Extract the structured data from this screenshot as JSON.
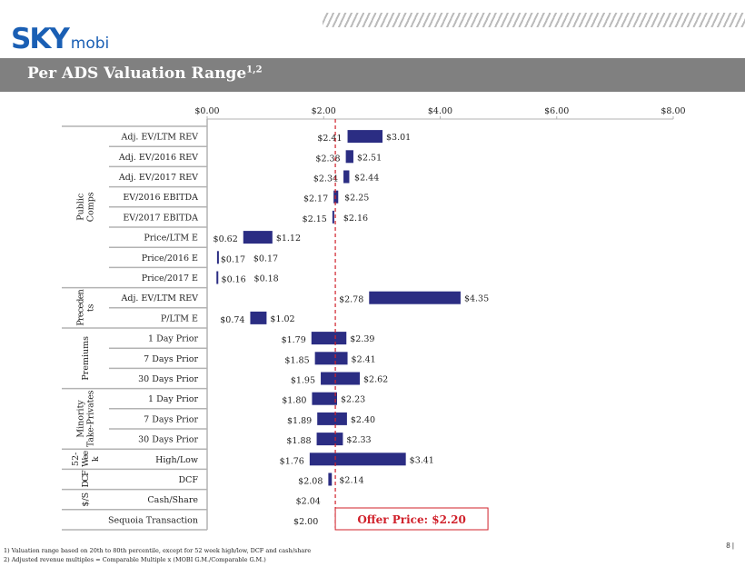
{
  "header": {
    "logo_main": "SKY",
    "logo_sub": "mobi",
    "title": "Per ADS Valuation Range",
    "title_sup": "1,2"
  },
  "colors": {
    "bar": "#2b2d83",
    "offer": "#d0202a",
    "grid": "#b3b3b3"
  },
  "chart_data": {
    "type": "bar",
    "subtype": "floating-range-horizontal",
    "xlim": [
      0,
      8
    ],
    "x_ticks": [
      "$0.00",
      "$2.00",
      "$4.00",
      "$6.00",
      "$8.00"
    ],
    "x_tick_values": [
      0,
      2,
      4,
      6,
      8
    ],
    "axis_position": "top",
    "groups": [
      {
        "name": "Public Comps",
        "rows": 8
      },
      {
        "name": "Preceden ts",
        "rows": 2
      },
      {
        "name": "Premiums",
        "rows": 3
      },
      {
        "name": "Minority Take-Privates",
        "rows": 3
      },
      {
        "name": "52- Wee k",
        "rows": 1
      },
      {
        "name": "DCF",
        "rows": 1
      },
      {
        "name": "$/S",
        "rows": 1
      },
      {
        "name": "",
        "rows": 1
      }
    ],
    "rows": [
      {
        "label": "Adj. EV/LTM REV",
        "low": 2.41,
        "high": 3.01,
        "low_label": "$2.41",
        "high_label": "$3.01"
      },
      {
        "label": "Adj. EV/2016 REV",
        "low": 2.38,
        "high": 2.51,
        "low_label": "$2.38",
        "high_label": "$2.51"
      },
      {
        "label": "Adj. EV/2017 REV",
        "low": 2.34,
        "high": 2.44,
        "low_label": "$2.34",
        "high_label": "$2.44"
      },
      {
        "label": "EV/2016 EBITDA",
        "low": 2.17,
        "high": 2.25,
        "low_label": "$2.17",
        "high_label": "$2.25"
      },
      {
        "label": "EV/2017 EBITDA",
        "low": 2.15,
        "high": 2.16,
        "low_label": "$2.15",
        "high_label": "$2.16"
      },
      {
        "label": "Price/LTM E",
        "low": 0.62,
        "high": 1.12,
        "low_label": "$0.62",
        "high_label": "$1.12"
      },
      {
        "label": "Price/2016 E",
        "low": 0.17,
        "high": 0.17,
        "low_label": "$0.17",
        "high_label": "$0.17"
      },
      {
        "label": "Price/2017 E",
        "low": 0.16,
        "high": 0.18,
        "low_label": "$0.16",
        "high_label": "$0.18"
      },
      {
        "label": "Adj. EV/LTM REV",
        "low": 2.78,
        "high": 4.35,
        "low_label": "$2.78",
        "high_label": "$4.35"
      },
      {
        "label": "P/LTM E",
        "low": 0.74,
        "high": 1.02,
        "low_label": "$0.74",
        "high_label": "$1.02"
      },
      {
        "label": "1 Day Prior",
        "low": 1.79,
        "high": 2.39,
        "low_label": "$1.79",
        "high_label": "$2.39"
      },
      {
        "label": "7 Days Prior",
        "low": 1.85,
        "high": 2.41,
        "low_label": "$1.85",
        "high_label": "$2.41"
      },
      {
        "label": "30 Days Prior",
        "low": 1.95,
        "high": 2.62,
        "low_label": "$1.95",
        "high_label": "$2.62"
      },
      {
        "label": "1 Day Prior",
        "low": 1.8,
        "high": 2.23,
        "low_label": "$1.80",
        "high_label": "$2.23"
      },
      {
        "label": "7 Days Prior",
        "low": 1.89,
        "high": 2.4,
        "low_label": "$1.89",
        "high_label": "$2.40"
      },
      {
        "label": "30 Days Prior",
        "low": 1.88,
        "high": 2.33,
        "low_label": "$1.88",
        "high_label": "$2.33"
      },
      {
        "label": "High/Low",
        "low": 1.76,
        "high": 3.41,
        "low_label": "$1.76",
        "high_label": "$3.41"
      },
      {
        "label": "DCF",
        "low": 2.08,
        "high": 2.14,
        "low_label": "$2.08",
        "high_label": "$2.14"
      },
      {
        "label": "Cash/Share",
        "low": 2.04,
        "high": null,
        "low_label": "$2.04",
        "high_label": null
      },
      {
        "label": "Sequoia Transaction",
        "low": 2.0,
        "high": null,
        "low_label": "$2.00",
        "high_label": null
      }
    ],
    "reference_line": {
      "value": 2.2,
      "label": "Offer Price: $2.20"
    }
  },
  "footnotes": [
    "1) Valuation range based on 20th to 80th percentile, except for 52 week high/low, DCF and cash/share",
    "2) Adjusted revenue multiples = Comparable Multiple x (MOBI G.M./Comparable G.M.)"
  ],
  "page_number": "8 |"
}
